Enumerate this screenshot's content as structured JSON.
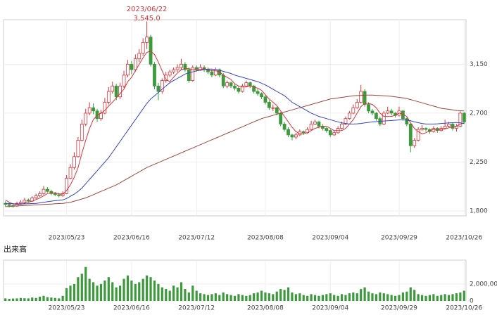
{
  "chart_data": {
    "type": "candlestick",
    "annotation": {
      "date": "2023/06/22",
      "price": "3,545.0",
      "index": 37
    },
    "xlabels": [
      {
        "index": 16,
        "label": "2023/05/23"
      },
      {
        "index": 33,
        "label": "2023/06/16"
      },
      {
        "index": 50,
        "label": "2023/07/12"
      },
      {
        "index": 68,
        "label": "2023/08/08"
      },
      {
        "index": 85,
        "label": "2023/09/04"
      },
      {
        "index": 103,
        "label": "2023/09/29"
      },
      {
        "index": 120,
        "label": "2023/10/26"
      }
    ],
    "ylim": [
      1755,
      3560
    ],
    "yticks": [
      {
        "value": 1800,
        "label": "1,800"
      },
      {
        "value": 2250,
        "label": "2,250"
      },
      {
        "value": 2700,
        "label": "2,700"
      },
      {
        "value": 3150,
        "label": "3,150"
      }
    ],
    "up_color": "#d8333a",
    "down_color": "#3c9a3c",
    "ohlc": [
      [
        1870,
        1890,
        1840,
        1860
      ],
      [
        1860,
        1875,
        1835,
        1850
      ],
      [
        1850,
        1870,
        1830,
        1845
      ],
      [
        1845,
        1885,
        1840,
        1870
      ],
      [
        1870,
        1900,
        1860,
        1880
      ],
      [
        1880,
        1920,
        1870,
        1900
      ],
      [
        1900,
        1915,
        1875,
        1890
      ],
      [
        1890,
        1935,
        1885,
        1920
      ],
      [
        1920,
        1960,
        1910,
        1940
      ],
      [
        1940,
        1980,
        1930,
        1960
      ],
      [
        1960,
        2030,
        1950,
        2000
      ],
      [
        2000,
        2020,
        1970,
        1980
      ],
      [
        1980,
        1995,
        1945,
        1960
      ],
      [
        1960,
        1975,
        1935,
        1950
      ],
      [
        1950,
        1965,
        1925,
        1940
      ],
      [
        1940,
        1980,
        1930,
        1960
      ],
      [
        1960,
        2130,
        1955,
        2100
      ],
      [
        2100,
        2230,
        2090,
        2200
      ],
      [
        2200,
        2340,
        2180,
        2300
      ],
      [
        2300,
        2480,
        2290,
        2450
      ],
      [
        2450,
        2640,
        2440,
        2600
      ],
      [
        2600,
        2740,
        2580,
        2700
      ],
      [
        2700,
        2800,
        2680,
        2750
      ],
      [
        2750,
        2790,
        2690,
        2720
      ],
      [
        2720,
        2740,
        2620,
        2650
      ],
      [
        2650,
        2730,
        2630,
        2700
      ],
      [
        2700,
        2840,
        2690,
        2800
      ],
      [
        2800,
        2940,
        2780,
        2900
      ],
      [
        2900,
        2990,
        2880,
        2950
      ],
      [
        2950,
        2970,
        2820,
        2850
      ],
      [
        2850,
        2980,
        2830,
        2950
      ],
      [
        2950,
        3090,
        2930,
        3050
      ],
      [
        3050,
        3190,
        3030,
        3150
      ],
      [
        3150,
        3180,
        3060,
        3100
      ],
      [
        3100,
        3240,
        3080,
        3200
      ],
      [
        3200,
        3290,
        3170,
        3250
      ],
      [
        3250,
        3390,
        3230,
        3350
      ],
      [
        3350,
        3545,
        3290,
        3400
      ],
      [
        3400,
        3420,
        3130,
        3150
      ],
      [
        3150,
        3170,
        2920,
        2950
      ],
      [
        2950,
        2980,
        2820,
        2900
      ],
      [
        2900,
        3020,
        2880,
        3000
      ],
      [
        3000,
        3080,
        2980,
        3050
      ],
      [
        3050,
        3100,
        3030,
        3080
      ],
      [
        3080,
        3120,
        3060,
        3100
      ],
      [
        3100,
        3150,
        3080,
        3120
      ],
      [
        3120,
        3200,
        3100,
        3150
      ],
      [
        3150,
        3170,
        3080,
        3100
      ],
      [
        3100,
        3120,
        2980,
        3000
      ],
      [
        3000,
        3140,
        2990,
        3120
      ],
      [
        3120,
        3140,
        3080,
        3100
      ],
      [
        3100,
        3150,
        3090,
        3120
      ],
      [
        3120,
        3140,
        3080,
        3100
      ],
      [
        3100,
        3120,
        3060,
        3080
      ],
      [
        3080,
        3100,
        3030,
        3050
      ],
      [
        3050,
        3120,
        3040,
        3100
      ],
      [
        3100,
        3110,
        3030,
        3050
      ],
      [
        3050,
        3070,
        2930,
        2950
      ],
      [
        2950,
        3000,
        2930,
        2980
      ],
      [
        2980,
        2990,
        2930,
        2950
      ],
      [
        2950,
        2970,
        2910,
        2930
      ],
      [
        2930,
        2950,
        2880,
        2900
      ],
      [
        2900,
        2970,
        2890,
        2950
      ],
      [
        2950,
        3000,
        2940,
        2980
      ],
      [
        2980,
        2990,
        2930,
        2950
      ],
      [
        2950,
        2960,
        2880,
        2900
      ],
      [
        2900,
        2920,
        2860,
        2880
      ],
      [
        2880,
        2890,
        2830,
        2850
      ],
      [
        2850,
        2870,
        2780,
        2800
      ],
      [
        2800,
        2820,
        2730,
        2750
      ],
      [
        2750,
        2780,
        2720,
        2750
      ],
      [
        2750,
        2760,
        2680,
        2700
      ],
      [
        2700,
        2710,
        2580,
        2600
      ],
      [
        2600,
        2620,
        2530,
        2550
      ],
      [
        2550,
        2570,
        2480,
        2500
      ],
      [
        2500,
        2510,
        2450,
        2480
      ],
      [
        2480,
        2520,
        2460,
        2500
      ],
      [
        2500,
        2550,
        2490,
        2530
      ],
      [
        2530,
        2540,
        2500,
        2520
      ],
      [
        2520,
        2570,
        2510,
        2550
      ],
      [
        2550,
        2630,
        2540,
        2600
      ],
      [
        2600,
        2640,
        2590,
        2620
      ],
      [
        2620,
        2630,
        2560,
        2580
      ],
      [
        2580,
        2600,
        2540,
        2560
      ],
      [
        2560,
        2570,
        2520,
        2540
      ],
      [
        2540,
        2550,
        2480,
        2500
      ],
      [
        2500,
        2540,
        2490,
        2520
      ],
      [
        2520,
        2580,
        2510,
        2560
      ],
      [
        2560,
        2620,
        2550,
        2600
      ],
      [
        2600,
        2670,
        2590,
        2650
      ],
      [
        2650,
        2720,
        2640,
        2700
      ],
      [
        2700,
        2780,
        2690,
        2750
      ],
      [
        2750,
        2830,
        2740,
        2800
      ],
      [
        2800,
        2960,
        2790,
        2900
      ],
      [
        2900,
        2920,
        2760,
        2780
      ],
      [
        2780,
        2800,
        2700,
        2720
      ],
      [
        2720,
        2740,
        2680,
        2700
      ],
      [
        2700,
        2710,
        2630,
        2650
      ],
      [
        2650,
        2670,
        2580,
        2600
      ],
      [
        2600,
        2720,
        2590,
        2700
      ],
      [
        2700,
        2760,
        2690,
        2720
      ],
      [
        2720,
        2740,
        2680,
        2700
      ],
      [
        2700,
        2710,
        2660,
        2680
      ],
      [
        2680,
        2760,
        2670,
        2720
      ],
      [
        2720,
        2730,
        2630,
        2650
      ],
      [
        2650,
        2660,
        2580,
        2600
      ],
      [
        2600,
        2610,
        2340,
        2400
      ],
      [
        2400,
        2470,
        2380,
        2450
      ],
      [
        2450,
        2570,
        2440,
        2550
      ],
      [
        2550,
        2590,
        2540,
        2560
      ],
      [
        2560,
        2570,
        2530,
        2550
      ],
      [
        2550,
        2560,
        2510,
        2530
      ],
      [
        2530,
        2580,
        2520,
        2560
      ],
      [
        2560,
        2570,
        2520,
        2540
      ],
      [
        2540,
        2580,
        2530,
        2560
      ],
      [
        2560,
        2640,
        2550,
        2580
      ],
      [
        2580,
        2620,
        2570,
        2600
      ],
      [
        2600,
        2610,
        2540,
        2560
      ],
      [
        2560,
        2600,
        2530,
        2580
      ],
      [
        2580,
        2720,
        2570,
        2700
      ],
      [
        2700,
        2710,
        2600,
        2620
      ]
    ],
    "series": [
      {
        "color": "#d8333a",
        "values": [
          1900,
          1880,
          1865,
          1860,
          1862,
          1870,
          1880,
          1890,
          1905,
          1920,
          1940,
          1960,
          1968,
          1966,
          1958,
          1954,
          1990,
          2040,
          2110,
          2200,
          2330,
          2450,
          2560,
          2640,
          2680,
          2700,
          2725,
          2765,
          2800,
          2840,
          2880,
          2920,
          2990,
          3030,
          3090,
          3150,
          3210,
          3260,
          3270,
          3240,
          3170,
          3090,
          3010,
          2990,
          3030,
          3070,
          3100,
          3110,
          3110,
          3100,
          3100,
          3100,
          3110,
          3100,
          3090,
          3090,
          3080,
          3050,
          3030,
          3010,
          2970,
          2950,
          2940,
          2940,
          2950,
          2940,
          2930,
          2910,
          2870,
          2830,
          2800,
          2770,
          2720,
          2670,
          2620,
          2570,
          2530,
          2510,
          2510,
          2520,
          2540,
          2560,
          2570,
          2580,
          2580,
          2560,
          2540,
          2540,
          2540,
          2560,
          2600,
          2640,
          2700,
          2760,
          2790,
          2790,
          2780,
          2750,
          2700,
          2670,
          2670,
          2670,
          2680,
          2700,
          2690,
          2670,
          2610,
          2560,
          2530,
          2510,
          2520,
          2540,
          2550,
          2550,
          2550,
          2555,
          2565,
          2575,
          2580,
          2600,
          2610
        ]
      },
      {
        "color": "#3344cc",
        "values": [
          1870,
          1868,
          1866,
          1865,
          1864,
          1865,
          1866,
          1868,
          1870,
          1875,
          1880,
          1885,
          1890,
          1895,
          1898,
          1902,
          1915,
          1935,
          1955,
          1980,
          2010,
          2050,
          2090,
          2130,
          2170,
          2210,
          2250,
          2290,
          2340,
          2390,
          2440,
          2490,
          2540,
          2590,
          2640,
          2690,
          2740,
          2790,
          2830,
          2860,
          2890,
          2920,
          2950,
          2980,
          3000,
          3020,
          3040,
          3060,
          3070,
          3080,
          3090,
          3095,
          3100,
          3105,
          3105,
          3100,
          3095,
          3085,
          3075,
          3065,
          3050,
          3040,
          3030,
          3020,
          3010,
          3000,
          2990,
          2975,
          2960,
          2940,
          2920,
          2900,
          2880,
          2860,
          2830,
          2800,
          2780,
          2760,
          2740,
          2720,
          2700,
          2685,
          2670,
          2660,
          2650,
          2640,
          2630,
          2620,
          2610,
          2605,
          2600,
          2600,
          2602,
          2605,
          2610,
          2615,
          2620,
          2622,
          2625,
          2628,
          2630,
          2632,
          2635,
          2638,
          2638,
          2636,
          2630,
          2620,
          2612,
          2605,
          2600,
          2600,
          2600,
          2602,
          2605,
          2608,
          2610,
          2612,
          2614,
          2610,
          2605
        ]
      },
      {
        "color": "#a0463c",
        "values": [
          1840,
          1842,
          1844,
          1846,
          1848,
          1850,
          1852,
          1854,
          1856,
          1858,
          1860,
          1862,
          1864,
          1866,
          1868,
          1870,
          1875,
          1880,
          1890,
          1900,
          1910,
          1920,
          1935,
          1950,
          1965,
          1980,
          1995,
          2010,
          2025,
          2040,
          2060,
          2080,
          2100,
          2120,
          2140,
          2160,
          2180,
          2200,
          2215,
          2230,
          2245,
          2260,
          2275,
          2290,
          2305,
          2320,
          2335,
          2350,
          2365,
          2380,
          2395,
          2410,
          2425,
          2440,
          2455,
          2470,
          2485,
          2500,
          2515,
          2530,
          2545,
          2560,
          2575,
          2590,
          2605,
          2620,
          2635,
          2650,
          2660,
          2670,
          2680,
          2690,
          2700,
          2710,
          2720,
          2730,
          2740,
          2750,
          2760,
          2770,
          2780,
          2790,
          2800,
          2810,
          2820,
          2830,
          2835,
          2840,
          2845,
          2850,
          2855,
          2860,
          2862,
          2864,
          2866,
          2866,
          2866,
          2864,
          2862,
          2860,
          2858,
          2855,
          2850,
          2845,
          2840,
          2835,
          2825,
          2815,
          2805,
          2795,
          2785,
          2775,
          2765,
          2755,
          2745,
          2740,
          2735,
          2730,
          2725,
          2722,
          2720
        ]
      }
    ],
    "volume": {
      "label": "出来高",
      "color": "#3c9a3c",
      "ylim": [
        0,
        4800000
      ],
      "yticks": [
        0,
        {
          "value": 2000000,
          "label": "2,000,000"
        }
      ],
      "values": [
        300000,
        250000,
        280000,
        300000,
        350000,
        320000,
        300000,
        400000,
        350000,
        500000,
        600000,
        450000,
        400000,
        350000,
        300000,
        600000,
        1500000,
        1800000,
        2000000,
        2800000,
        3200000,
        4000000,
        2600000,
        2200000,
        1800000,
        2000000,
        2400000,
        2800000,
        2200000,
        1600000,
        1800000,
        2600000,
        3000000,
        2400000,
        2000000,
        2200000,
        2600000,
        3000000,
        2800000,
        2400000,
        2000000,
        1600000,
        1400000,
        1200000,
        1800000,
        1600000,
        2200000,
        1400000,
        1000000,
        1800000,
        1200000,
        900000,
        800000,
        700000,
        800000,
        900000,
        700000,
        1000000,
        800000,
        700000,
        600000,
        800000,
        700000,
        600000,
        700000,
        900000,
        1000000,
        1200000,
        1000000,
        900000,
        800000,
        1100000,
        1400000,
        1300000,
        1600000,
        1000000,
        800000,
        900000,
        700000,
        600000,
        800000,
        700000,
        600000,
        700000,
        800000,
        900000,
        700000,
        600000,
        800000,
        700000,
        900000,
        1000000,
        900000,
        1400000,
        1600000,
        1100000,
        900000,
        800000,
        1000000,
        900000,
        800000,
        700000,
        600000,
        700000,
        1000000,
        1100000,
        1600000,
        1300000,
        800000,
        700000,
        600000,
        700000,
        800000,
        600000,
        700000,
        800000,
        700000,
        800000,
        900000,
        1000000,
        1200000
      ]
    }
  }
}
